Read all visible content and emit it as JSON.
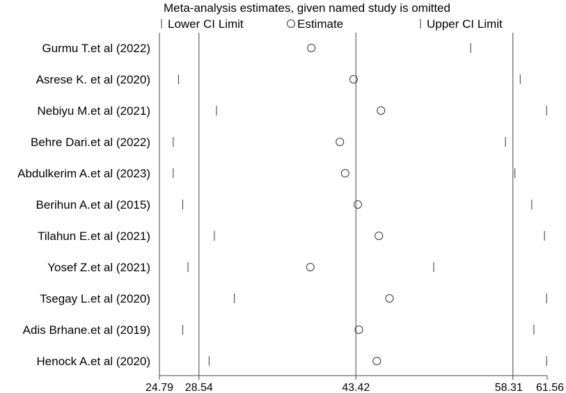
{
  "chart_data": {
    "type": "scatter",
    "title": "Meta-analysis estimates, given named study is omitted",
    "legend": {
      "lower": "Lower CI Limit",
      "estimate": "Estimate",
      "upper": "Upper CI Limit",
      "placement": "top"
    },
    "x_ticks": [
      24.79,
      28.54,
      43.42,
      58.31,
      61.56
    ],
    "x_tick_labels": [
      "24.79",
      "28.54",
      "43.42",
      "58.31",
      "61.56"
    ],
    "reference_lines": [
      28.54,
      43.42,
      58.31
    ],
    "xlim": [
      24.79,
      61.56
    ],
    "studies": [
      {
        "name": "Gurmu T.et al (2022)",
        "lower": 54.3,
        "estimate": 39.2,
        "upper": 54.3
      },
      {
        "name": "Asrese K. et al (2020)",
        "lower": 26.6,
        "estimate": 43.2,
        "upper": 59.0
      },
      {
        "name": "Nebiyu M.et al (2021)",
        "lower": 30.2,
        "estimate": 45.8,
        "upper": 61.5
      },
      {
        "name": "Behre Dari.et al (2022)",
        "lower": 26.1,
        "estimate": 41.9,
        "upper": 57.6
      },
      {
        "name": "Abdulkerim A.et al (2023)",
        "lower": 26.1,
        "estimate": 42.4,
        "upper": 58.5
      },
      {
        "name": "Berihun A.et al (2015)",
        "lower": 27.0,
        "estimate": 43.6,
        "upper": 60.1
      },
      {
        "name": "Tilahun E.et al (2021)",
        "lower": 30.0,
        "estimate": 45.6,
        "upper": 61.3
      },
      {
        "name": "Yosef Z.et al (2021)",
        "lower": 27.5,
        "estimate": 39.1,
        "upper": 50.8
      },
      {
        "name": "Tsegay L.et al (2020)",
        "lower": 31.9,
        "estimate": 46.6,
        "upper": 61.5
      },
      {
        "name": "Adis Brhane.et al (2019)",
        "lower": 27.0,
        "estimate": 43.7,
        "upper": 60.3
      },
      {
        "name": "Henock A.et al (2020)",
        "lower": 29.5,
        "estimate": 45.4,
        "upper": 61.5
      }
    ]
  }
}
